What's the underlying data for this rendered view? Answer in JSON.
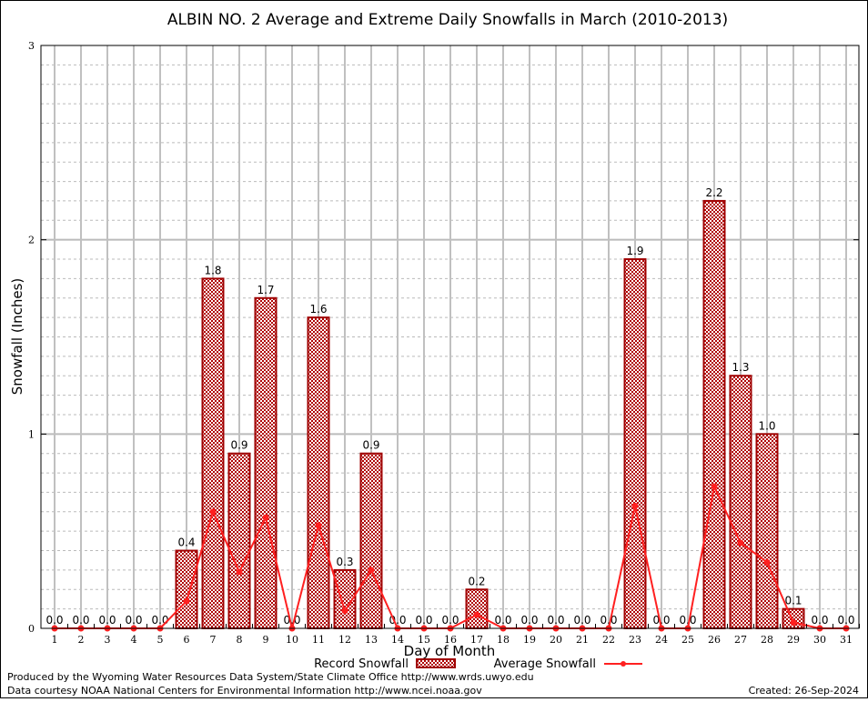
{
  "chart_data": {
    "type": "bar",
    "title": "ALBIN NO. 2 Average and Extreme Daily Snowfalls in March (2010-2013)",
    "xlabel": "Day of Month",
    "ylabel": "Snowfall (Inches)",
    "ylim": [
      0,
      3
    ],
    "yticks": [
      "0",
      "1",
      "2",
      "3"
    ],
    "categories": [
      "1",
      "2",
      "3",
      "4",
      "5",
      "6",
      "7",
      "8",
      "9",
      "10",
      "11",
      "12",
      "13",
      "14",
      "15",
      "16",
      "17",
      "18",
      "19",
      "20",
      "21",
      "22",
      "23",
      "24",
      "25",
      "26",
      "27",
      "28",
      "29",
      "30",
      "31"
    ],
    "grid": true,
    "legend_position": "bottom",
    "series": [
      {
        "name": "Record Snowfall",
        "kind": "bar",
        "color": "#a00000",
        "values": [
          0.0,
          0.0,
          0.0,
          0.0,
          0.0,
          0.4,
          1.8,
          0.9,
          1.7,
          0.0,
          1.6,
          0.3,
          0.9,
          0.0,
          0.0,
          0.0,
          0.2,
          0.0,
          0.0,
          0.0,
          0.0,
          0.0,
          1.9,
          0.0,
          0.0,
          2.2,
          1.3,
          1.0,
          0.1,
          0.0,
          0.0
        ],
        "labels": [
          "0.0",
          "0.0",
          "0.0",
          "0.0",
          "0.0",
          "0.4",
          "1.8",
          "0.9",
          "1.7",
          "0.0",
          "1.6",
          "0.3",
          "0.9",
          "0.0",
          "0.0",
          "0.0",
          "0.2",
          "0.0",
          "0.0",
          "0.0",
          "0.0",
          "0.0",
          "1.9",
          "0.0",
          "0.0",
          "2.2",
          "1.3",
          "1.0",
          "0.1",
          "0.0",
          "0.0"
        ]
      },
      {
        "name": "Average Snowfall",
        "kind": "line",
        "color": "#ff2020",
        "values": [
          0,
          0,
          0,
          0,
          0,
          0.14,
          0.6,
          0.29,
          0.57,
          0,
          0.53,
          0.09,
          0.3,
          0,
          0,
          0,
          0.07,
          0,
          0,
          0,
          0,
          0,
          0.63,
          0,
          0,
          0.73,
          0.44,
          0.34,
          0.03,
          0,
          0
        ]
      }
    ]
  },
  "footer": {
    "produced_by": "Produced by the Wyoming Water Resources Data System/State Climate Office http://www.wrds.uwyo.edu",
    "courtesy": "Data courtesy NOAA National Centers for Environmental Information http://www.ncei.noaa.gov",
    "created": "Created: 26-Sep-2024"
  }
}
